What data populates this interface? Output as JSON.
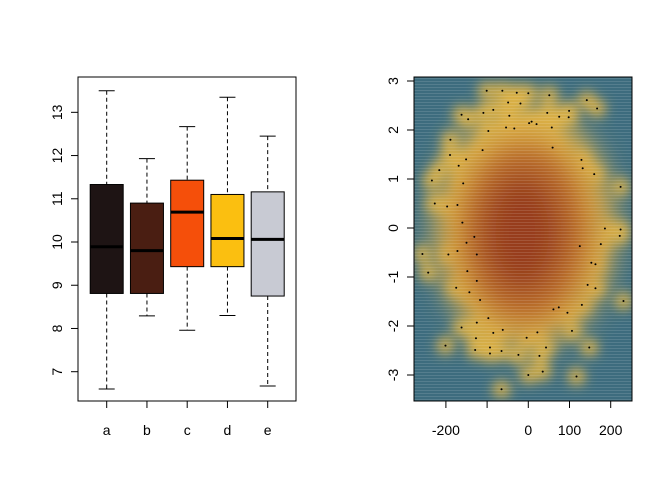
{
  "chart_data": [
    {
      "type": "box",
      "categories": [
        "a",
        "b",
        "c",
        "d",
        "e"
      ],
      "colors": [
        "#1e1414",
        "#4a1e12",
        "#f54f0a",
        "#fbbf10",
        "#c8cad3"
      ],
      "boxes": [
        {
          "name": "a",
          "whisker_low": 6.6,
          "q1": 8.81,
          "median": 9.89,
          "q3": 11.33,
          "whisker_high": 13.5
        },
        {
          "name": "b",
          "whisker_low": 8.29,
          "q1": 8.81,
          "median": 9.8,
          "q3": 10.9,
          "whisker_high": 11.93
        },
        {
          "name": "c",
          "whisker_low": 7.96,
          "q1": 9.43,
          "median": 10.69,
          "q3": 11.43,
          "whisker_high": 12.67
        },
        {
          "name": "d",
          "whisker_low": 8.3,
          "q1": 9.43,
          "median": 10.08,
          "q3": 11.1,
          "whisker_high": 13.35
        },
        {
          "name": "e",
          "whisker_low": 6.67,
          "q1": 8.75,
          "median": 10.06,
          "q3": 11.16,
          "whisker_high": 12.45
        }
      ],
      "yticks": [
        7,
        8,
        9,
        10,
        11,
        12,
        13
      ],
      "ylim": [
        6.35,
        13.85
      ],
      "grid": false
    },
    {
      "type": "scatter",
      "style": "smoothed density with sparse points",
      "colors": {
        "low": "#3d6c7e",
        "mid": "#e0b244",
        "high": "#b8692a",
        "peak": "#8e3216"
      },
      "xlim": [
        -275,
        255
      ],
      "ylim": [
        -3.5,
        3.05
      ],
      "xticks": [
        -200,
        -100,
        0,
        100,
        200
      ],
      "xticklabels": [
        "-200",
        "",
        "0",
        "100",
        "200"
      ],
      "yticks": [
        -3,
        -2,
        -1,
        0,
        1,
        2,
        3
      ],
      "grid": false,
      "points": [
        [
          -101,
          2.8
        ],
        [
          -63,
          2.8
        ],
        [
          -28,
          2.76
        ],
        [
          0,
          2.75
        ],
        [
          51,
          2.71
        ],
        [
          142,
          2.61
        ],
        [
          167,
          2.44
        ],
        [
          -49,
          2.56
        ],
        [
          -19,
          2.54
        ],
        [
          -162,
          2.31
        ],
        [
          -146,
          2.22
        ],
        [
          -109,
          2.35
        ],
        [
          -85,
          2.41
        ],
        [
          -46,
          2.29
        ],
        [
          75,
          2.27
        ],
        [
          98,
          2.26
        ],
        [
          99,
          2.39
        ],
        [
          46,
          2.35
        ],
        [
          -54,
          2.05
        ],
        [
          -34,
          2.03
        ],
        [
          2,
          2.14
        ],
        [
          8,
          2.17
        ],
        [
          20,
          2.12
        ],
        [
          57,
          2.05
        ],
        [
          -97,
          1.98
        ],
        [
          -189,
          1.8
        ],
        [
          -190,
          1.49
        ],
        [
          59,
          1.64
        ],
        [
          -111,
          1.59
        ],
        [
          -151,
          1.4
        ],
        [
          -169,
          1.27
        ],
        [
          -216,
          1.18
        ],
        [
          -234,
          0.97
        ],
        [
          -158,
          0.91
        ],
        [
          129,
          1.39
        ],
        [
          132,
          1.22
        ],
        [
          160,
          1.1
        ],
        [
          224,
          0.84
        ],
        [
          -227,
          0.5
        ],
        [
          -197,
          0.44
        ],
        [
          -172,
          0.47
        ],
        [
          -160,
          0.11
        ],
        [
          186,
          -0.01
        ],
        [
          224,
          -0.03
        ],
        [
          222,
          -0.16
        ],
        [
          176,
          -0.33
        ],
        [
          125,
          -0.37
        ],
        [
          -131,
          -0.18
        ],
        [
          -150,
          -0.3
        ],
        [
          -172,
          -0.47
        ],
        [
          -125,
          -0.54
        ],
        [
          -257,
          -0.53
        ],
        [
          -194,
          -0.54
        ],
        [
          -243,
          -0.91
        ],
        [
          -148,
          -0.88
        ],
        [
          -125,
          -1.08
        ],
        [
          144,
          -1.16
        ],
        [
          163,
          -1.23
        ],
        [
          -175,
          -1.22
        ],
        [
          -143,
          -1.31
        ],
        [
          -117,
          -1.47
        ],
        [
          153,
          -0.71
        ],
        [
          163,
          -0.74
        ],
        [
          231,
          -1.49
        ],
        [
          130,
          -1.57
        ],
        [
          61,
          -1.66
        ],
        [
          74,
          -1.62
        ],
        [
          95,
          -1.73
        ],
        [
          -97,
          -1.84
        ],
        [
          -162,
          -2.03
        ],
        [
          -125,
          -1.93
        ],
        [
          -85,
          -2.14
        ],
        [
          -62,
          -2.08
        ],
        [
          -4,
          -2.24
        ],
        [
          22,
          -2.13
        ],
        [
          106,
          -2.1
        ],
        [
          -127,
          -2.25
        ],
        [
          -93,
          -2.44
        ],
        [
          -129,
          -2.49
        ],
        [
          -93,
          -2.56
        ],
        [
          -65,
          -2.51
        ],
        [
          -24,
          -2.59
        ],
        [
          43,
          -2.44
        ],
        [
          27,
          -2.61
        ],
        [
          -201,
          -2.4
        ],
        [
          148,
          -2.44
        ],
        [
          35,
          -2.93
        ],
        [
          0,
          -3.0
        ],
        [
          117,
          -3.03
        ],
        [
          -65,
          -3.29
        ]
      ]
    }
  ]
}
